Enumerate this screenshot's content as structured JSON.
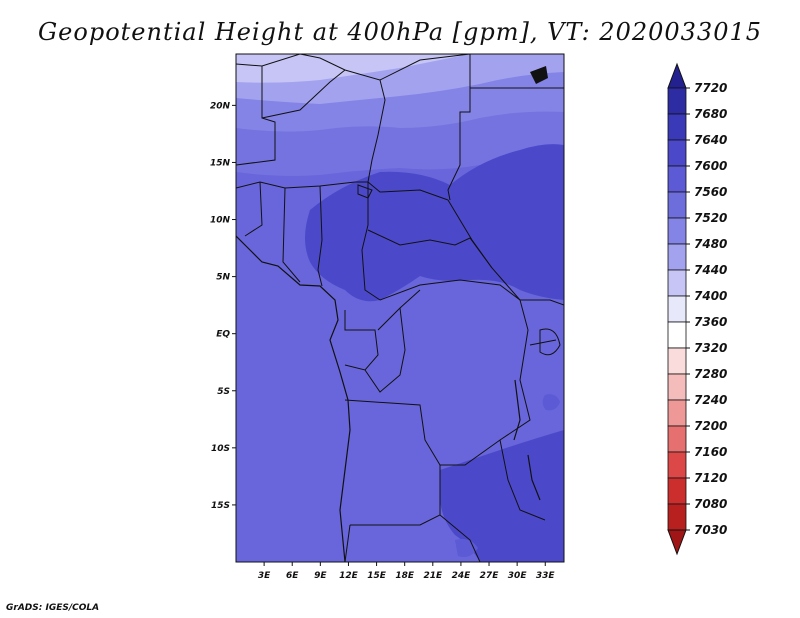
{
  "title": "Geopotential Height at 400hPa [gpm], VT: 2020033015",
  "credit": "GrADS: IGES/COLA",
  "map": {
    "lat_labels": [
      "20N",
      "15N",
      "10N",
      "5N",
      "EQ",
      "5S",
      "10S",
      "15S"
    ],
    "lat_values": [
      20,
      15,
      10,
      5,
      0,
      -5,
      -10,
      -15
    ],
    "lon_labels": [
      "3E",
      "6E",
      "9E",
      "12E",
      "15E",
      "18E",
      "21E",
      "24E",
      "27E",
      "30E",
      "33E"
    ],
    "lon_values": [
      3,
      6,
      9,
      12,
      15,
      18,
      21,
      24,
      27,
      30,
      33
    ],
    "lon_range": [
      0,
      35
    ],
    "lat_range": [
      -20,
      24.5
    ]
  },
  "colorbar": {
    "labels": [
      "7720",
      "7680",
      "7640",
      "7600",
      "7560",
      "7520",
      "7480",
      "7440",
      "7400",
      "7360",
      "7320",
      "7280",
      "7240",
      "7200",
      "7160",
      "7120",
      "7080",
      "7030"
    ],
    "colors": [
      "#22218f",
      "#2d2ca2",
      "#3a39b8",
      "#4b49c9",
      "#5c5ad4",
      "#6e6ddc",
      "#8483e6",
      "#a3a2ef",
      "#c6c5f6",
      "#e8e8fb",
      "#ffffff",
      "#fbdcdc",
      "#f5bcbc",
      "#ee9898",
      "#e67070",
      "#dc4848",
      "#cc2e2e",
      "#b82020",
      "#a01515"
    ]
  }
}
